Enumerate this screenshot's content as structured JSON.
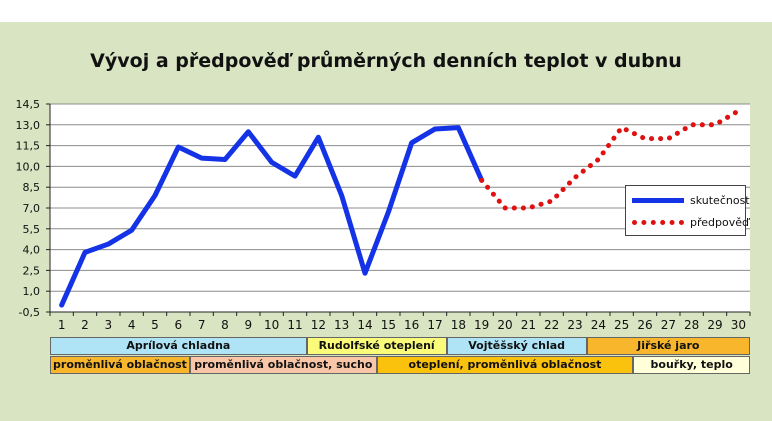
{
  "chart_data": {
    "type": "line",
    "title": "Vývoj a předpověď průměrných denních teplot v dubnu",
    "x": [
      1,
      2,
      3,
      4,
      5,
      6,
      7,
      8,
      9,
      10,
      11,
      12,
      13,
      14,
      15,
      16,
      17,
      18,
      19,
      20,
      21,
      22,
      23,
      24,
      25,
      26,
      27,
      28,
      29,
      30
    ],
    "x_tick_labels": [
      "1",
      "2",
      "3",
      "4",
      "5",
      "6",
      "7",
      "8",
      "9",
      "10",
      "11",
      "12",
      "13",
      "14",
      "15",
      "16",
      "17",
      "18",
      "19",
      "20",
      "21",
      "22",
      "23",
      "24",
      "25",
      "26",
      "27",
      "28",
      "29",
      "30"
    ],
    "y_tick_labels": [
      "14,5",
      "13,0",
      "11,5",
      "10,0",
      "8,5",
      "7,0",
      "5,5",
      "4,0",
      "2,5",
      "1,0",
      "-0,5"
    ],
    "ylim": [
      -0.5,
      14.5
    ],
    "grid": true,
    "legend_placement": "right",
    "series": [
      {
        "name": "skutečnost",
        "color": "#1432e6",
        "style": "solid",
        "x": [
          1,
          2,
          3,
          4,
          5,
          6,
          7,
          8,
          9,
          10,
          11,
          12,
          13,
          14,
          15,
          16,
          17,
          18,
          19
        ],
        "values": [
          0.0,
          3.8,
          4.4,
          5.4,
          7.9,
          11.4,
          10.6,
          10.5,
          12.5,
          10.3,
          9.3,
          12.1,
          7.9,
          2.3,
          6.7,
          11.7,
          12.7,
          12.8,
          9.0
        ]
      },
      {
        "name": "předpověď",
        "color": "#e01010",
        "style": "dotted",
        "x": [
          19,
          20,
          21,
          22,
          23,
          24,
          25,
          26,
          27,
          28,
          29,
          30
        ],
        "values": [
          9.0,
          7.0,
          7.0,
          7.5,
          9.2,
          10.5,
          12.8,
          12.0,
          12.0,
          13.0,
          13.0,
          14.0
        ]
      }
    ],
    "bands": [
      [
        {
          "label": "Aprílová chladna",
          "from": 1,
          "to": 11,
          "color": "#aee4f6"
        },
        {
          "label": "Rudolfské oteplení",
          "from": 12,
          "to": 17,
          "color": "#fbfb7a"
        },
        {
          "label": "Vojtěšský chlad",
          "from": 18,
          "to": 23,
          "color": "#aee4f6"
        },
        {
          "label": "Jiřské jaro",
          "from": 24,
          "to": 30,
          "color": "#f8b62c"
        }
      ],
      [
        {
          "label": "proměnlivá oblačnost",
          "from": 1,
          "to": 6,
          "color": "#f8b62c"
        },
        {
          "label": "proměnlivá oblačnost, sucho",
          "from": 7,
          "to": 14,
          "color": "#f9c7a8"
        },
        {
          "label": "oteplení, proměnlivá oblačnost",
          "from": 15,
          "to": 25,
          "color": "#fbc20d"
        },
        {
          "label": "bouřky, teplo",
          "from": 26,
          "to": 30,
          "color": "#ffffd9"
        }
      ]
    ]
  }
}
